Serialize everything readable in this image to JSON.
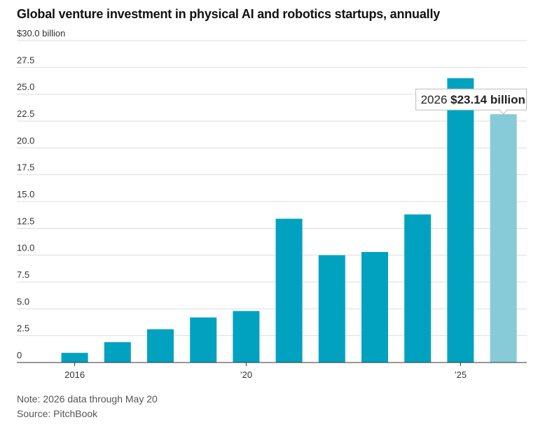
{
  "title": "Global venture investment in physical AI and robotics startups, annually",
  "notes": {
    "note": "Note: 2026 data through May 20",
    "source": "Source: PitchBook"
  },
  "colors": {
    "bar": "#00a2bf",
    "highlight": "#87cad8",
    "grid": "#dddddd",
    "baseline": "#333333"
  },
  "chart_data": {
    "type": "bar",
    "title": "Global venture investment in physical AI and robotics startups, annually",
    "categories": [
      "2016",
      "2017",
      "2018",
      "2019",
      "2020",
      "2021",
      "2022",
      "2023",
      "2024",
      "2025",
      "2026"
    ],
    "x_tick_labels": [
      {
        "category": "2016",
        "label": "2016"
      },
      {
        "category": "2020",
        "label": "’20"
      },
      {
        "category": "2025",
        "label": "’25"
      }
    ],
    "values": [
      0.9,
      1.9,
      3.1,
      4.2,
      4.8,
      13.4,
      10.0,
      10.3,
      13.8,
      26.5,
      23.14
    ],
    "y_ticks": [
      0,
      2.5,
      5.0,
      7.5,
      10.0,
      12.5,
      15.0,
      17.5,
      20.0,
      22.5,
      25.0,
      27.5,
      30.0
    ],
    "y_tick_labels": [
      "0",
      "2.5",
      "5.0",
      "7.5",
      "10.0",
      "12.5",
      "15.0",
      "17.5",
      "20.0",
      "22.5",
      "25.0",
      "27.5",
      "$30.0 billion"
    ],
    "ylim": [
      0,
      30
    ],
    "highlight_index": 10,
    "annotation": {
      "year": "2026",
      "value_text": "$23.14 billion"
    },
    "grid": true
  }
}
